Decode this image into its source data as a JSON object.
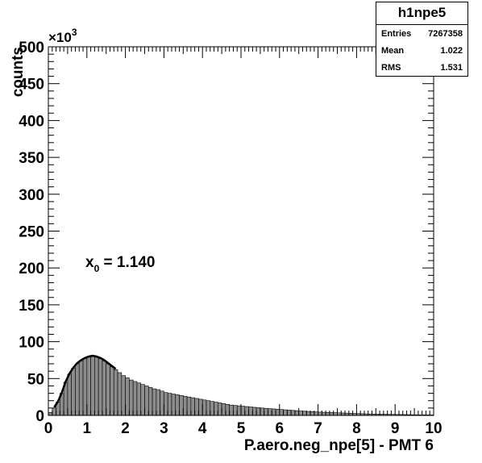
{
  "chart_data": {
    "type": "histogram",
    "histogram_name": "h1npe5",
    "stats": [
      {
        "label": "Entries",
        "value": "7267358"
      },
      {
        "label": "Mean",
        "value": "1.022"
      },
      {
        "label": "RMS",
        "value": "1.531"
      }
    ],
    "xlabel": "P.aero.neg_npe[5] - PMT 6",
    "ylabel": "counts",
    "y_exponent_base": "×10",
    "y_exponent_power": "3",
    "annotation": {
      "prefix": "x",
      "subscript": "0",
      "text": " = 1.140"
    },
    "xlim": [
      0,
      10
    ],
    "ylim": [
      0,
      500
    ],
    "x_ticks": [
      "0",
      "1",
      "2",
      "3",
      "4",
      "5",
      "6",
      "7",
      "8",
      "9",
      "10"
    ],
    "y_ticks": [
      "0",
      "50",
      "100",
      "150",
      "200",
      "250",
      "300",
      "350",
      "400",
      "450",
      "500"
    ],
    "bin_width": 0.1,
    "bin_values_thousands": [
      4,
      10,
      18,
      30,
      45,
      56,
      64,
      70,
      74,
      77,
      79,
      80,
      79,
      77,
      74,
      70,
      66,
      62,
      58,
      54,
      51,
      48,
      46,
      44,
      42,
      40,
      38,
      36,
      35,
      33,
      31,
      30,
      29,
      28,
      27,
      26,
      25,
      24,
      23,
      22,
      21,
      20,
      19,
      18,
      17,
      16,
      15,
      14,
      13.5,
      13,
      12.5,
      12,
      11.5,
      11,
      10.5,
      10,
      9.6,
      9.2,
      8.8,
      8.4,
      8,
      7.6,
      7.2,
      6.8,
      6.4,
      6,
      5.7,
      5.4,
      5.1,
      4.8,
      4.5,
      4.3,
      4.1,
      3.9,
      3.7,
      3.5,
      3.3,
      3.1,
      2.9,
      2.7,
      2.5,
      2.3,
      2.1,
      2.0,
      1.9,
      1.8,
      1.7,
      1.6,
      1.5,
      1.4,
      1.3,
      1.2,
      1.1,
      1.0,
      0.9,
      0.85,
      0.8,
      0.75,
      0.7,
      0.65
    ],
    "fit_function": "peak fit on first peak",
    "fit_x_range": [
      0.1,
      1.8
    ],
    "colors": {
      "fill": "#8c8c8c",
      "line": "#000000",
      "fit": "#000000"
    }
  }
}
